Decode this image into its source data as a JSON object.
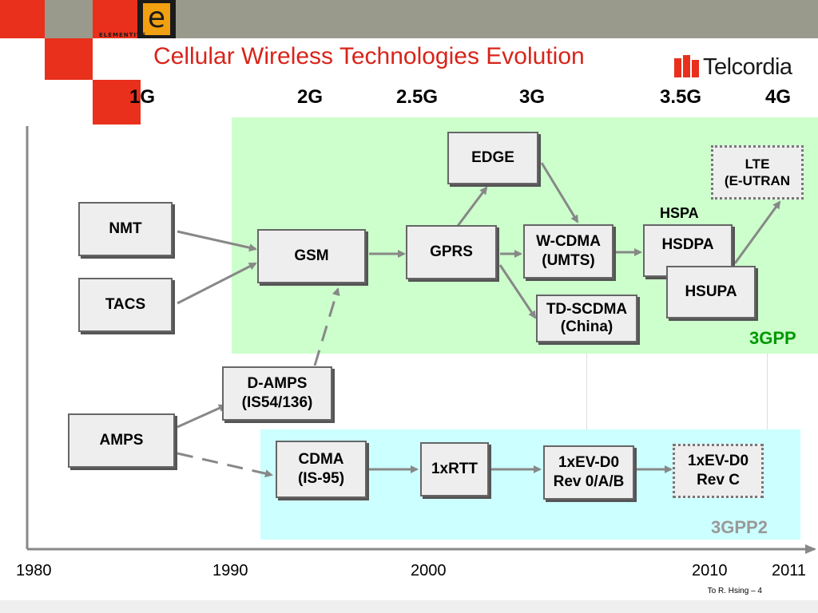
{
  "title": "Cellular Wireless Technologies Evolution",
  "logo": {
    "brand_letter": "e",
    "brand_word": "ELEMENTIVE"
  },
  "partner_logo": {
    "name": "Telcordia"
  },
  "generations": [
    "1G",
    "2G",
    "2.5G",
    "3G",
    "3.5G",
    "4G"
  ],
  "regions": {
    "gpp": "3GPP",
    "gpp2": "3GPP2"
  },
  "region_colors": {
    "gpp": "#ccffcc",
    "gpp2": "#ccffff"
  },
  "nodes": {
    "nmt": "NMT",
    "tacs": "TACS",
    "gsm": "GSM",
    "gprs": "GPRS",
    "edge": "EDGE",
    "wcdma": [
      "W-CDMA",
      "(UMTS)"
    ],
    "tdscdma": [
      "TD-SCDMA",
      "(China)"
    ],
    "hsdpa": "HSDPA",
    "hsupa": "HSUPA",
    "lte": [
      "LTE",
      "(E-UTRAN"
    ],
    "damps": [
      "D-AMPS",
      "(IS54/136)"
    ],
    "amps": "AMPS",
    "cdma": [
      "CDMA",
      "(IS-95)"
    ],
    "rtt": "1xRTT",
    "evdo": [
      "1xEV-D0",
      "Rev 0/A/B"
    ],
    "evdoc": [
      "1xEV-D0",
      "Rev C"
    ]
  },
  "labels": {
    "hspa": "HSPA"
  },
  "timeline": {
    "years": [
      "1980",
      "1990",
      "2000",
      "2010",
      "2011"
    ]
  },
  "footer": {
    "note": "To R. Hsing – 4"
  }
}
